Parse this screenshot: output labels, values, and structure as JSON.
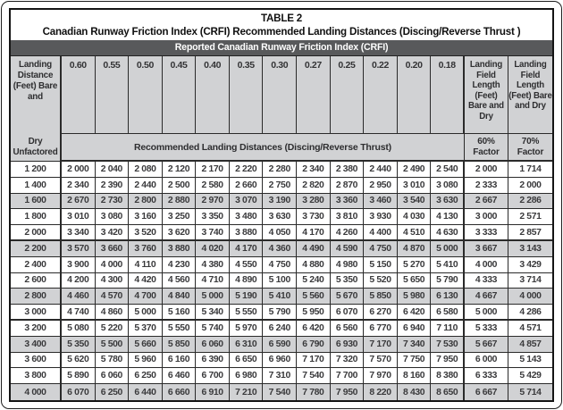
{
  "doc": {
    "title": "TABLE 2",
    "subtitle": "Canadian Runway Friction Index (CRFI) Recommended Landing Distances (Discing/Reverse Thrust )",
    "banner": "Reported Canadian Runway Friction Index (CRFI)"
  },
  "header": {
    "left_top": "Landing Distance (Feet) Bare and",
    "left_bottom": "Dry Unfactored",
    "crfi_values": [
      "0.60",
      "0.55",
      "0.50",
      "0.45",
      "0.40",
      "0.35",
      "0.30",
      "0.27",
      "0.25",
      "0.22",
      "0.20",
      "0.18"
    ],
    "recommended": "Recommended Landing Distances (Discing/Reverse Thrust)",
    "factor60_top": "Landing Field Length (Feet) Bare and Dry",
    "factor70_top": "Landing Field Length (Feet) Bare and Dry",
    "factor60_bottom": "60% Factor",
    "factor70_bottom": "70% Factor"
  },
  "rows": [
    {
      "distance": "1 200",
      "values": [
        "2 000",
        "2 040",
        "2 080",
        "2 120",
        "2 170",
        "2 220",
        "2 280",
        "2 340",
        "2 380",
        "2 440",
        "2 490",
        "2 540"
      ],
      "factor60": "2 000",
      "factor70": "1 714",
      "shaded": false,
      "group_end": false
    },
    {
      "distance": "1 400",
      "values": [
        "2 340",
        "2 390",
        "2 440",
        "2 500",
        "2 580",
        "2 660",
        "2 750",
        "2 820",
        "2 870",
        "2 950",
        "3 010",
        "3 080"
      ],
      "factor60": "2 333",
      "factor70": "2 000",
      "shaded": false,
      "group_end": false
    },
    {
      "distance": "1 600",
      "values": [
        "2 670",
        "2 730",
        "2 800",
        "2 880",
        "2 970",
        "3 070",
        "3 190",
        "3 280",
        "3 360",
        "3 460",
        "3 540",
        "3 630"
      ],
      "factor60": "2 667",
      "factor70": "2 286",
      "shaded": true,
      "group_end": false
    },
    {
      "distance": "1 800",
      "values": [
        "3 010",
        "3 080",
        "3 160",
        "3 250",
        "3 350",
        "3 480",
        "3 630",
        "3 730",
        "3 810",
        "3 930",
        "4 030",
        "4 130"
      ],
      "factor60": "3 000",
      "factor70": "2 571",
      "shaded": false,
      "group_end": false
    },
    {
      "distance": "2 000",
      "values": [
        "3 340",
        "3 420",
        "3 520",
        "3 620",
        "3 740",
        "3 880",
        "4 050",
        "4 170",
        "4 260",
        "4 400",
        "4 510",
        "4 630"
      ],
      "factor60": "3 333",
      "factor70": "2 857",
      "shaded": false,
      "group_end": true
    },
    {
      "distance": "2 200",
      "values": [
        "3 570",
        "3 660",
        "3 760",
        "3 880",
        "4 020",
        "4 170",
        "4 360",
        "4 490",
        "4 590",
        "4 750",
        "4 870",
        "5 000"
      ],
      "factor60": "3 667",
      "factor70": "3 143",
      "shaded": true,
      "group_end": false
    },
    {
      "distance": "2 400",
      "values": [
        "3 900",
        "4 000",
        "4 110",
        "4 230",
        "4 380",
        "4 550",
        "4 750",
        "4 880",
        "4 980",
        "5 150",
        "5 270",
        "5 410"
      ],
      "factor60": "4 000",
      "factor70": "3 429",
      "shaded": false,
      "group_end": false
    },
    {
      "distance": "2 600",
      "values": [
        "4 200",
        "4 300",
        "4 420",
        "4 560",
        "4 710",
        "4 890",
        "5 100",
        "5 240",
        "5 350",
        "5 520",
        "5 650",
        "5 790"
      ],
      "factor60": "4 333",
      "factor70": "3 714",
      "shaded": false,
      "group_end": false
    },
    {
      "distance": "2 800",
      "values": [
        "4 460",
        "4 570",
        "4 700",
        "4 840",
        "5 000",
        "5 190",
        "5 410",
        "5 560",
        "5 670",
        "5 850",
        "5 980",
        "6 130"
      ],
      "factor60": "4 667",
      "factor70": "4 000",
      "shaded": true,
      "group_end": false
    },
    {
      "distance": "3 000",
      "values": [
        "4 740",
        "4 860",
        "5 000",
        "5 160",
        "5 340",
        "5 550",
        "5 790",
        "5 950",
        "6 070",
        "6 270",
        "6 420",
        "6 580"
      ],
      "factor60": "5 000",
      "factor70": "4 286",
      "shaded": false,
      "group_end": true
    },
    {
      "distance": "3 200",
      "values": [
        "5 080",
        "5 220",
        "5 370",
        "5 550",
        "5 740",
        "5 970",
        "6 240",
        "6 420",
        "6 560",
        "6 770",
        "6 940",
        "7 110"
      ],
      "factor60": "5 333",
      "factor70": "4 571",
      "shaded": false,
      "group_end": false
    },
    {
      "distance": "3 400",
      "values": [
        "5 350",
        "5 500",
        "5 660",
        "5 850",
        "6 060",
        "6 310",
        "6 590",
        "6 790",
        "6 930",
        "7 170",
        "7 340",
        "7 530"
      ],
      "factor60": "5 667",
      "factor70": "4 857",
      "shaded": true,
      "group_end": false
    },
    {
      "distance": "3 600",
      "values": [
        "5 620",
        "5 780",
        "5 960",
        "6 160",
        "6 390",
        "6 650",
        "6 960",
        "7 170",
        "7 320",
        "7 570",
        "7 750",
        "7 950"
      ],
      "factor60": "6 000",
      "factor70": "5 143",
      "shaded": false,
      "group_end": false
    },
    {
      "distance": "3 800",
      "values": [
        "5 890",
        "6 060",
        "6 250",
        "6 460",
        "6 700",
        "6 980",
        "7 310",
        "7 540",
        "7 700",
        "7 970",
        "8 160",
        "8 380"
      ],
      "factor60": "6 333",
      "factor70": "5 429",
      "shaded": false,
      "group_end": false
    },
    {
      "distance": "4 000",
      "values": [
        "6 070",
        "6 250",
        "6 440",
        "6 660",
        "6 910",
        "7 210",
        "7 540",
        "7 780",
        "7 950",
        "8 220",
        "8 430",
        "8 650"
      ],
      "factor60": "6 667",
      "factor70": "5 714",
      "shaded": true,
      "group_end": false
    }
  ],
  "colors": {
    "banner_bg": "#58595b",
    "shade": "#d1d2d4",
    "border": "#2a2a2a",
    "text": "#3a3a3c"
  }
}
